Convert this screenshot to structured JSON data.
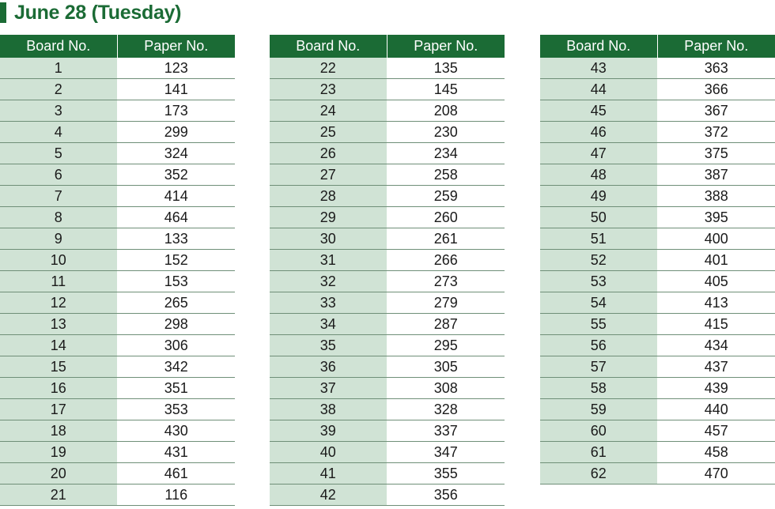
{
  "title": "June 28 (Tuesday)",
  "headers": {
    "board": "Board No.",
    "paper": "Paper No."
  },
  "colors": {
    "accent": "#1b6b35",
    "shade": "#d0e3d5"
  },
  "tables": [
    {
      "rows": [
        {
          "board": "1",
          "paper": "123"
        },
        {
          "board": "2",
          "paper": "141"
        },
        {
          "board": "3",
          "paper": "173"
        },
        {
          "board": "4",
          "paper": "299"
        },
        {
          "board": "5",
          "paper": "324"
        },
        {
          "board": "6",
          "paper": "352"
        },
        {
          "board": "7",
          "paper": "414"
        },
        {
          "board": "8",
          "paper": "464"
        },
        {
          "board": "9",
          "paper": "133"
        },
        {
          "board": "10",
          "paper": "152"
        },
        {
          "board": "11",
          "paper": "153"
        },
        {
          "board": "12",
          "paper": "265"
        },
        {
          "board": "13",
          "paper": "298"
        },
        {
          "board": "14",
          "paper": "306"
        },
        {
          "board": "15",
          "paper": "342"
        },
        {
          "board": "16",
          "paper": "351"
        },
        {
          "board": "17",
          "paper": "353"
        },
        {
          "board": "18",
          "paper": "430"
        },
        {
          "board": "19",
          "paper": "431"
        },
        {
          "board": "20",
          "paper": "461"
        },
        {
          "board": "21",
          "paper": "116"
        }
      ]
    },
    {
      "rows": [
        {
          "board": "22",
          "paper": "135"
        },
        {
          "board": "23",
          "paper": "145"
        },
        {
          "board": "24",
          "paper": "208"
        },
        {
          "board": "25",
          "paper": "230"
        },
        {
          "board": "26",
          "paper": "234"
        },
        {
          "board": "27",
          "paper": "258"
        },
        {
          "board": "28",
          "paper": "259"
        },
        {
          "board": "29",
          "paper": "260"
        },
        {
          "board": "30",
          "paper": "261"
        },
        {
          "board": "31",
          "paper": "266"
        },
        {
          "board": "32",
          "paper": "273"
        },
        {
          "board": "33",
          "paper": "279"
        },
        {
          "board": "34",
          "paper": "287"
        },
        {
          "board": "35",
          "paper": "295"
        },
        {
          "board": "36",
          "paper": "305"
        },
        {
          "board": "37",
          "paper": "308"
        },
        {
          "board": "38",
          "paper": "328"
        },
        {
          "board": "39",
          "paper": "337"
        },
        {
          "board": "40",
          "paper": "347"
        },
        {
          "board": "41",
          "paper": "355"
        },
        {
          "board": "42",
          "paper": "356"
        }
      ]
    },
    {
      "rows": [
        {
          "board": "43",
          "paper": "363"
        },
        {
          "board": "44",
          "paper": "366"
        },
        {
          "board": "45",
          "paper": "367"
        },
        {
          "board": "46",
          "paper": "372"
        },
        {
          "board": "47",
          "paper": "375"
        },
        {
          "board": "48",
          "paper": "387"
        },
        {
          "board": "49",
          "paper": "388"
        },
        {
          "board": "50",
          "paper": "395"
        },
        {
          "board": "51",
          "paper": "400"
        },
        {
          "board": "52",
          "paper": "401"
        },
        {
          "board": "53",
          "paper": "405"
        },
        {
          "board": "54",
          "paper": "413"
        },
        {
          "board": "55",
          "paper": "415"
        },
        {
          "board": "56",
          "paper": "434"
        },
        {
          "board": "57",
          "paper": "437"
        },
        {
          "board": "58",
          "paper": "439"
        },
        {
          "board": "59",
          "paper": "440"
        },
        {
          "board": "60",
          "paper": "457"
        },
        {
          "board": "61",
          "paper": "458"
        },
        {
          "board": "62",
          "paper": "470"
        }
      ]
    }
  ]
}
